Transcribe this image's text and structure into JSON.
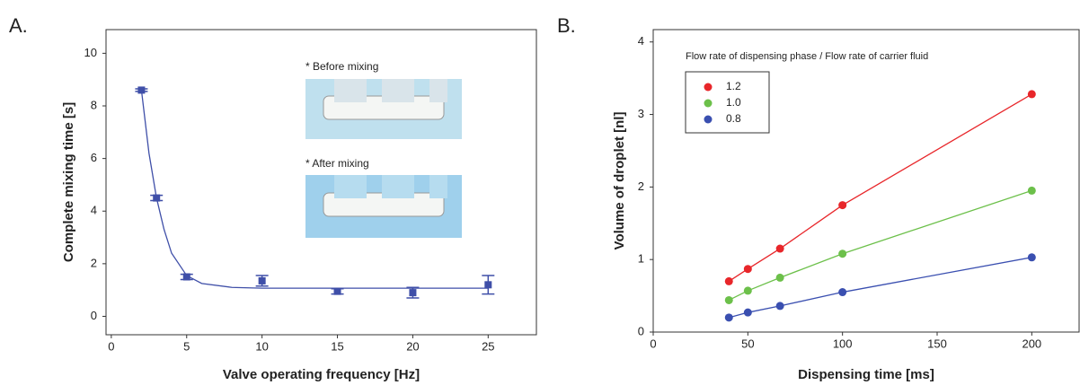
{
  "chart_data": [
    {
      "type": "scatter",
      "panel_label": "A.",
      "xlabel": "Valve operating frequency [Hz]",
      "ylabel": "Complete mixing time [s]",
      "x": [
        2,
        3,
        5,
        10,
        15,
        20,
        25
      ],
      "values": [
        8.6,
        4.5,
        1.5,
        1.35,
        0.95,
        0.9,
        1.2
      ],
      "errors": [
        0.05,
        0.1,
        0.1,
        0.2,
        0.1,
        0.2,
        0.35
      ],
      "color": "#3f4fa8",
      "fit": {
        "x": [
          2,
          2.5,
          3,
          3.5,
          4,
          5,
          6,
          8,
          10,
          15,
          25
        ],
        "values": [
          8.6,
          6.2,
          4.5,
          3.3,
          2.4,
          1.55,
          1.25,
          1.1,
          1.07,
          1.07,
          1.07
        ]
      },
      "annotations": [
        "* Before mixing",
        "* After mixing"
      ],
      "xlim": [
        -0.35,
        28.2
      ],
      "ylim": [
        -0.7,
        10.9
      ],
      "xticks": [
        0,
        5,
        10,
        15,
        20,
        25
      ],
      "yticks": [
        0,
        2,
        4,
        6,
        8,
        10
      ]
    },
    {
      "type": "line",
      "panel_label": "B.",
      "xlabel": "Dispensing time [ms]",
      "ylabel": "Volume of droplet [nl]",
      "legend_title": "Flow rate of dispensing phase / Flow rate of carrier fluid",
      "x": [
        40,
        50,
        67,
        100,
        200
      ],
      "series": [
        {
          "name": "1.2",
          "color": "#e8262a",
          "values": [
            0.7,
            0.87,
            1.15,
            1.75,
            3.28
          ]
        },
        {
          "name": "1.0",
          "color": "#6cc04a",
          "values": [
            0.44,
            0.57,
            0.75,
            1.08,
            1.95
          ]
        },
        {
          "name": "0.8",
          "color": "#3a4fb0",
          "values": [
            0.2,
            0.27,
            0.36,
            0.55,
            1.03
          ]
        }
      ],
      "xlim": [
        0,
        225
      ],
      "ylim": [
        0,
        4.17
      ],
      "xticks": [
        0,
        50,
        100,
        150,
        200
      ],
      "yticks": [
        0,
        1,
        2,
        3,
        4
      ]
    }
  ]
}
